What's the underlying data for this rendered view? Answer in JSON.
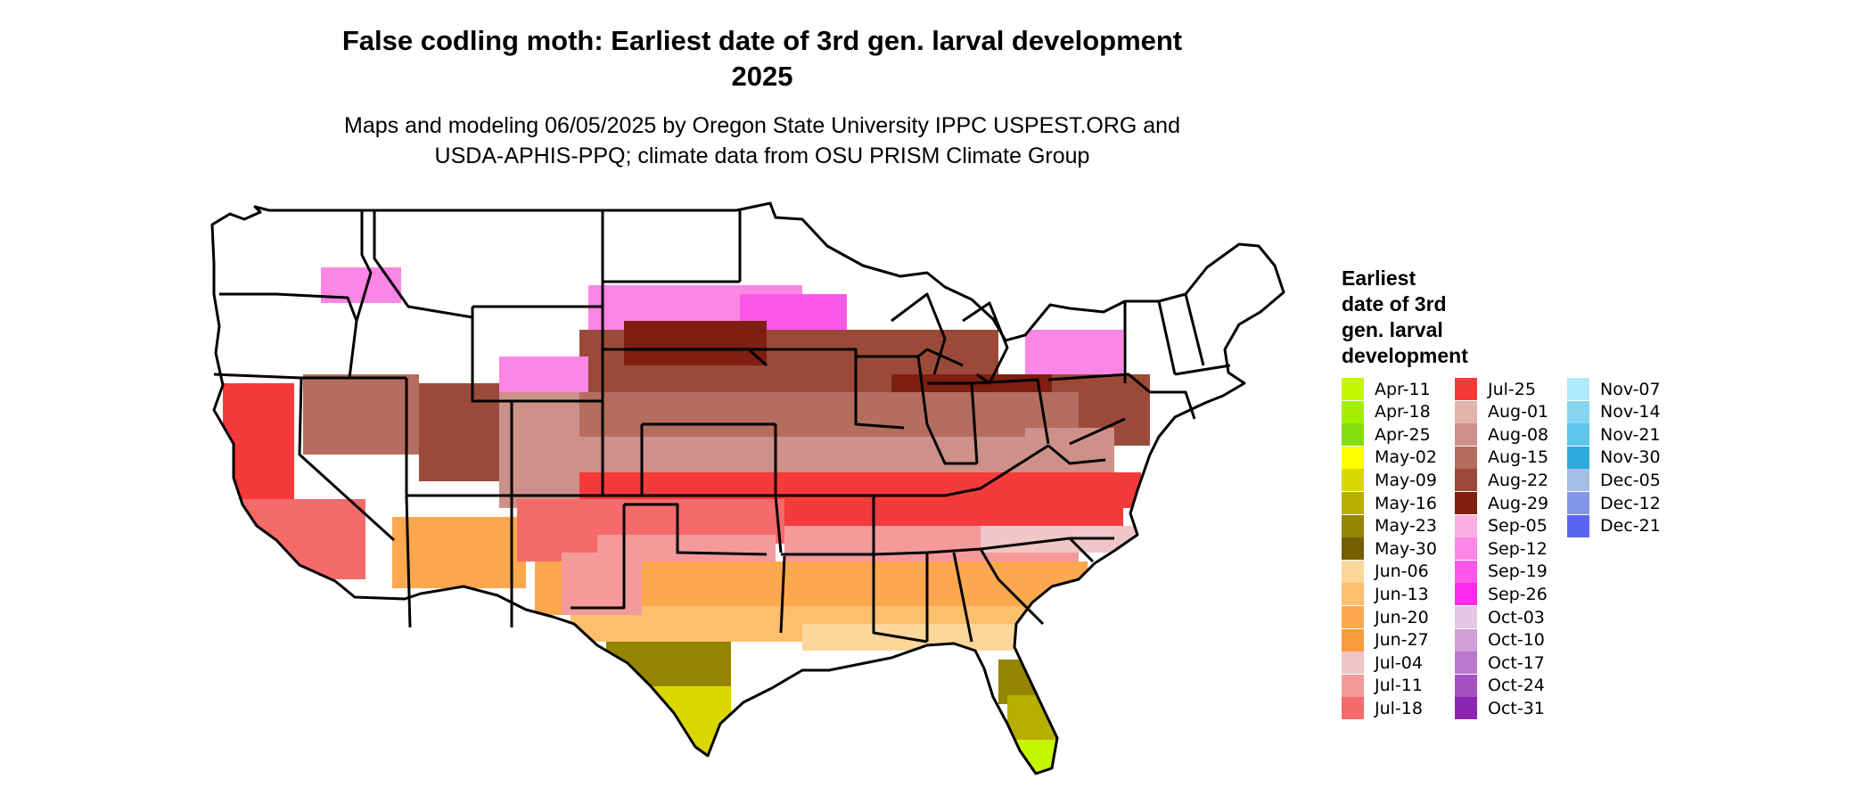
{
  "title": {
    "line1": "False codling moth: Earliest date of 3rd gen. larval development",
    "line2": "2025"
  },
  "subtitle": {
    "line1": "Maps and modeling 06/05/2025 by Oregon State University IPPC USPEST.ORG and",
    "line2": "USDA-APHIS-PPQ; climate data from OSU PRISM Climate Group"
  },
  "map": {
    "region": "Contiguous United States",
    "no_data_color": "#ffffff",
    "border_color": "#000000"
  },
  "legend": {
    "title_lines": [
      "Earliest",
      "date of 3rd",
      "gen. larval",
      "development"
    ],
    "columns": [
      [
        {
          "label": "Apr-11",
          "color": "#c6f500"
        },
        {
          "label": "Apr-18",
          "color": "#a5ee00"
        },
        {
          "label": "Apr-25",
          "color": "#84de0e"
        },
        {
          "label": "May-02",
          "color": "#ffff00"
        },
        {
          "label": "May-09",
          "color": "#d9d600"
        },
        {
          "label": "May-16",
          "color": "#b8ae00"
        },
        {
          "label": "May-23",
          "color": "#958400"
        },
        {
          "label": "May-30",
          "color": "#735e00"
        },
        {
          "label": "Jun-06",
          "color": "#fdd69a"
        },
        {
          "label": "Jun-13",
          "color": "#fdbf6c"
        },
        {
          "label": "Jun-20",
          "color": "#fda84f"
        },
        {
          "label": "Jun-27",
          "color": "#fb9a3a"
        },
        {
          "label": "Jul-04",
          "color": "#f1c6c8"
        },
        {
          "label": "Jul-11",
          "color": "#f49a9a"
        },
        {
          "label": "Jul-18",
          "color": "#f56a6a"
        }
      ],
      [
        {
          "label": "Jul-25",
          "color": "#f53a3a"
        },
        {
          "label": "Aug-01",
          "color": "#e3b4ab"
        },
        {
          "label": "Aug-08",
          "color": "#cd918a"
        },
        {
          "label": "Aug-15",
          "color": "#b46d5e"
        },
        {
          "label": "Aug-22",
          "color": "#9b4a3a"
        },
        {
          "label": "Aug-29",
          "color": "#7e1f12"
        },
        {
          "label": "Sep-05",
          "color": "#fbb0e4"
        },
        {
          "label": "Sep-12",
          "color": "#fb86e6"
        },
        {
          "label": "Sep-19",
          "color": "#fb58e8"
        },
        {
          "label": "Sep-26",
          "color": "#fb2cee"
        },
        {
          "label": "Oct-03",
          "color": "#e5c6e4"
        },
        {
          "label": "Oct-10",
          "color": "#d09fd6"
        },
        {
          "label": "Oct-17",
          "color": "#b979cc"
        },
        {
          "label": "Oct-24",
          "color": "#a64fc2"
        },
        {
          "label": "Oct-31",
          "color": "#8c24b2"
        }
      ],
      [
        {
          "label": "Nov-07",
          "color": "#aeeafa"
        },
        {
          "label": "Nov-14",
          "color": "#86d6f2"
        },
        {
          "label": "Nov-21",
          "color": "#5ec4ea"
        },
        {
          "label": "Nov-30",
          "color": "#30a9dc"
        },
        {
          "label": "Dec-05",
          "color": "#a6bde6"
        },
        {
          "label": "Dec-12",
          "color": "#8396ea"
        },
        {
          "label": "Dec-21",
          "color": "#5a66f2"
        }
      ]
    ]
  }
}
